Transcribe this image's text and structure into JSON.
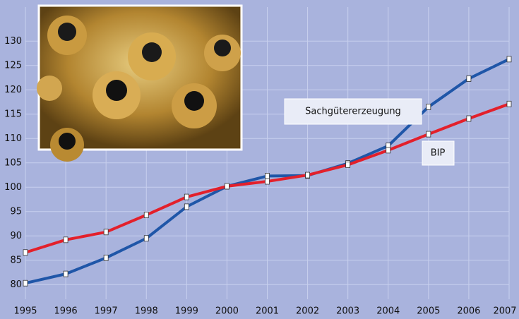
{
  "chart_data": {
    "type": "line",
    "x": [
      1995,
      1996,
      1997,
      1998,
      1999,
      2000,
      2001,
      2002,
      2003,
      2004,
      2005,
      2006,
      2007
    ],
    "series": [
      {
        "name": "Sachgütererzeugung",
        "color": "#1f56a8",
        "values": [
          80.3,
          82.2,
          85.5,
          89.5,
          96,
          100.2,
          102.3,
          102.4,
          104.9,
          108.5,
          116.5,
          122.3,
          126.3
        ]
      },
      {
        "name": "BIP",
        "color": "#e3202b",
        "values": [
          86.6,
          89.2,
          90.8,
          94.3,
          98,
          100.2,
          101.2,
          102.5,
          104.6,
          107.6,
          110.9,
          114.1,
          117.1
        ]
      }
    ],
    "ylim": [
      77,
      137
    ],
    "yticks": [
      80,
      85,
      90,
      95,
      100,
      105,
      110,
      115,
      120,
      125,
      130
    ],
    "xlim": [
      1995,
      2007
    ],
    "grid": true
  }
}
